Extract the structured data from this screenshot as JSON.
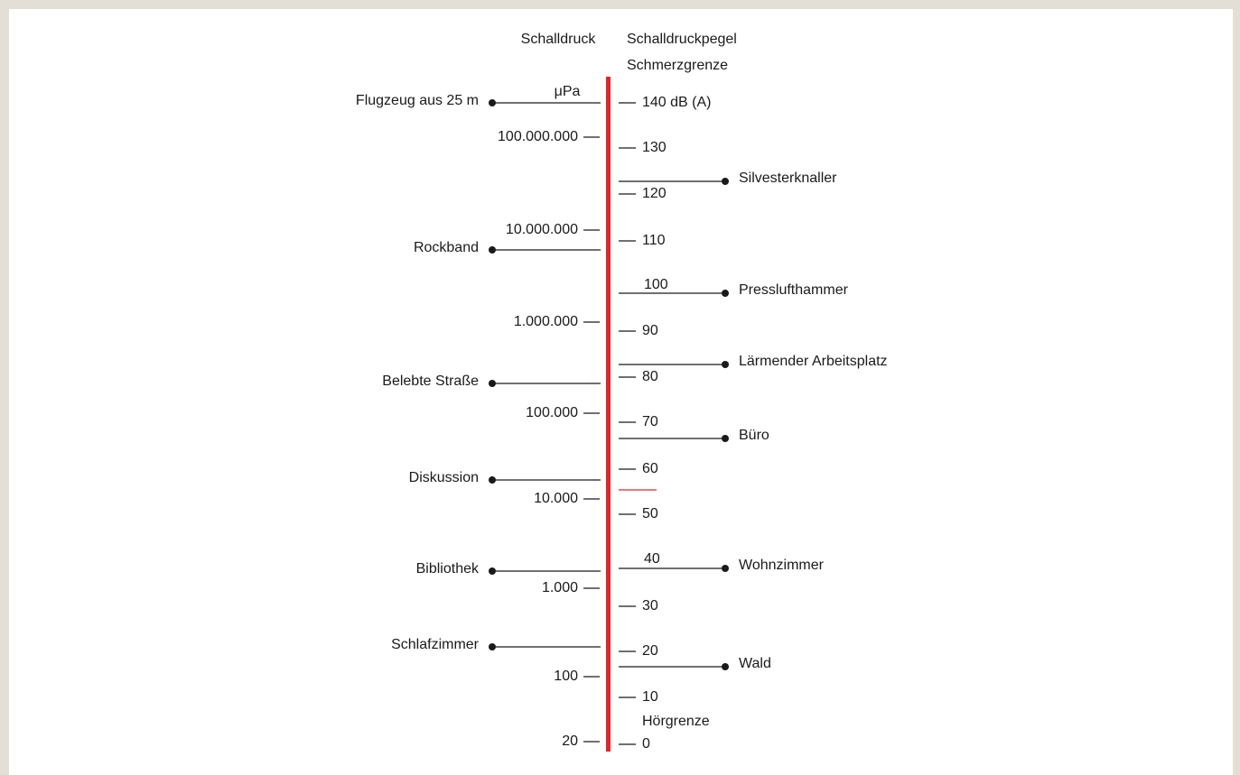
{
  "header": {
    "pressure": "Schalldruck",
    "level": "Schalldruckpegel",
    "pain_threshold": "Schmerzgrenze"
  },
  "pressure_unit": "μPa",
  "pressure_scale": [
    "100.000.000",
    "10.000.000",
    "1.000.000",
    "100.000",
    "10.000",
    "1.000",
    "100",
    "20"
  ],
  "level_scale": [
    "140 dB (A)",
    "130",
    "120",
    "110",
    "100",
    "90",
    "80",
    "70",
    "60",
    "50",
    "40",
    "30",
    "20",
    "10",
    "0"
  ],
  "hearing_threshold": "Hörgrenze",
  "sources_left": [
    "Flugzeug aus 25 m",
    "Rockband",
    "Belebte Straße",
    "Diskussion",
    "Bibliothek",
    "Schlafzimmer"
  ],
  "sources_right": [
    "Silvesterknaller",
    "Presslufthammer",
    "Lärmender Arbeitsplatz",
    "Büro",
    "Wohnzimmer",
    "Wald"
  ]
}
